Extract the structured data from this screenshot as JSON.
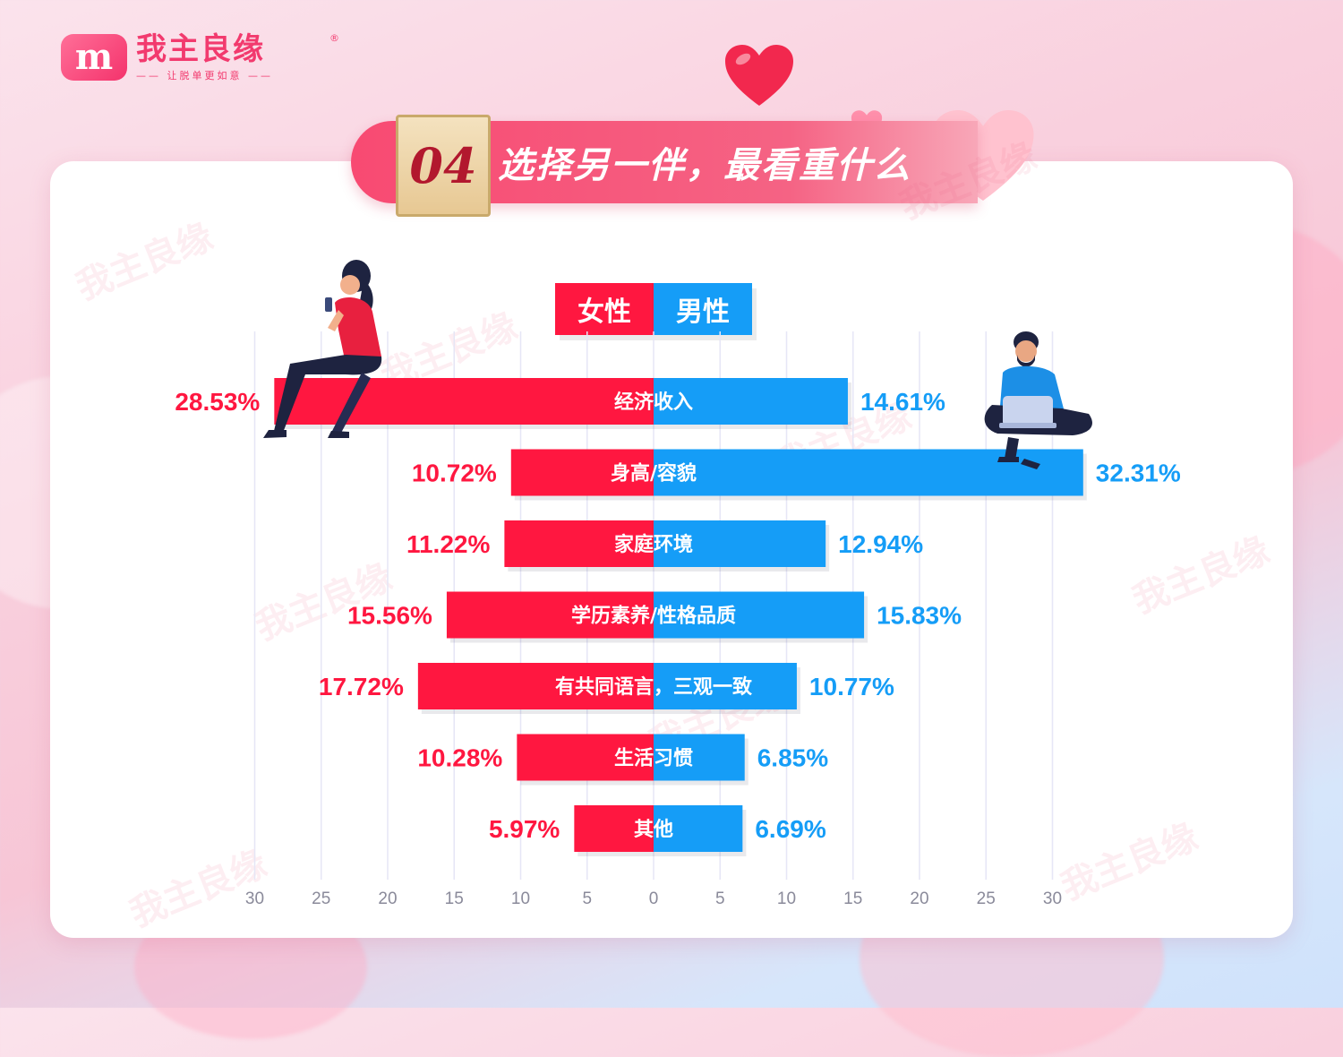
{
  "brand": {
    "logo_mark": "m",
    "name": "我主良缘",
    "registered": "®",
    "slogan": "—— 让脱单更如意 ——"
  },
  "title": {
    "number": "04",
    "text": "选择另一伴，最看重什么"
  },
  "legend": {
    "female": "女性",
    "male": "男性"
  },
  "colors": {
    "female": "#ff1740",
    "male": "#159df7",
    "grid": "#e6e6f6",
    "axis_text": "#8a8a9a"
  },
  "watermark_text": "我主良缘",
  "chart_data": {
    "type": "bar",
    "orientation": "horizontal-diverging",
    "categories": [
      "经济收入",
      "身高/容貌",
      "家庭环境",
      "学历素养/性格品质",
      "有共同语言，三观一致",
      "生活习惯",
      "其他"
    ],
    "series": [
      {
        "name": "女性",
        "values": [
          28.53,
          10.72,
          11.22,
          15.56,
          17.72,
          10.28,
          5.97
        ]
      },
      {
        "name": "男性",
        "values": [
          14.61,
          32.31,
          12.94,
          15.83,
          10.77,
          6.85,
          6.69
        ]
      }
    ],
    "value_labels": {
      "female": [
        "28.53%",
        "10.72%",
        "11.22%",
        "15.56%",
        "17.72%",
        "10.28%",
        "5.97%"
      ],
      "male": [
        "14.61%",
        "32.31%",
        "12.94%",
        "15.83%",
        "10.77%",
        "6.85%",
        "6.69%"
      ]
    },
    "x_ticks_left": [
      "30",
      "25",
      "20",
      "15",
      "10",
      "5"
    ],
    "x_ticks_right": [
      "0",
      "5",
      "10",
      "15",
      "20",
      "25",
      "30"
    ],
    "xlim": [
      -30,
      30
    ],
    "grid": true,
    "legend_position": "top-center"
  }
}
